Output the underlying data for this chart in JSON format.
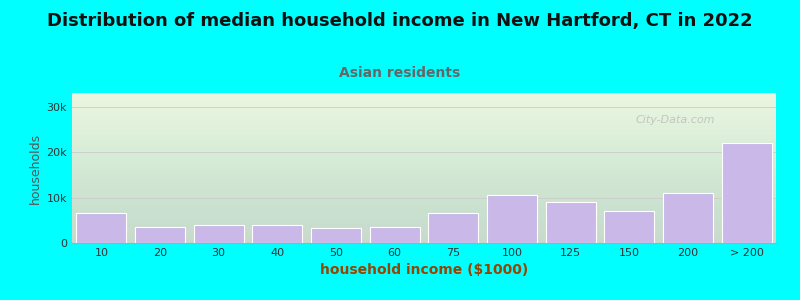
{
  "title": "Distribution of median household income in New Hartford, CT in 2022",
  "subtitle": "Asian residents",
  "xlabel": "household income ($1000)",
  "ylabel": "households",
  "bar_labels": [
    "10",
    "20",
    "30",
    "40",
    "50",
    "60",
    "75",
    "100",
    "125",
    "150",
    "200",
    "> 200"
  ],
  "bar_values": [
    6500,
    3500,
    4000,
    4000,
    3300,
    3500,
    6500,
    10500,
    9000,
    7000,
    11000,
    22000
  ],
  "bar_color": "#c9b8e8",
  "bar_edgecolor": "#ffffff",
  "background_color": "#00ffff",
  "ytick_labels": [
    "0",
    "10k",
    "20k",
    "30k"
  ],
  "ytick_values": [
    0,
    10000,
    20000,
    30000
  ],
  "ylim": [
    0,
    33000
  ],
  "watermark": "City-Data.com",
  "title_fontsize": 13,
  "subtitle_fontsize": 10,
  "subtitle_color": "#666666",
  "xlabel_fontsize": 10,
  "xlabel_color": "#994400",
  "ylabel_fontsize": 9,
  "ylabel_color": "#555555",
  "grid_color": "#cccccc",
  "title_color": "#111111",
  "tick_color": "#333333",
  "tick_fontsize": 8
}
